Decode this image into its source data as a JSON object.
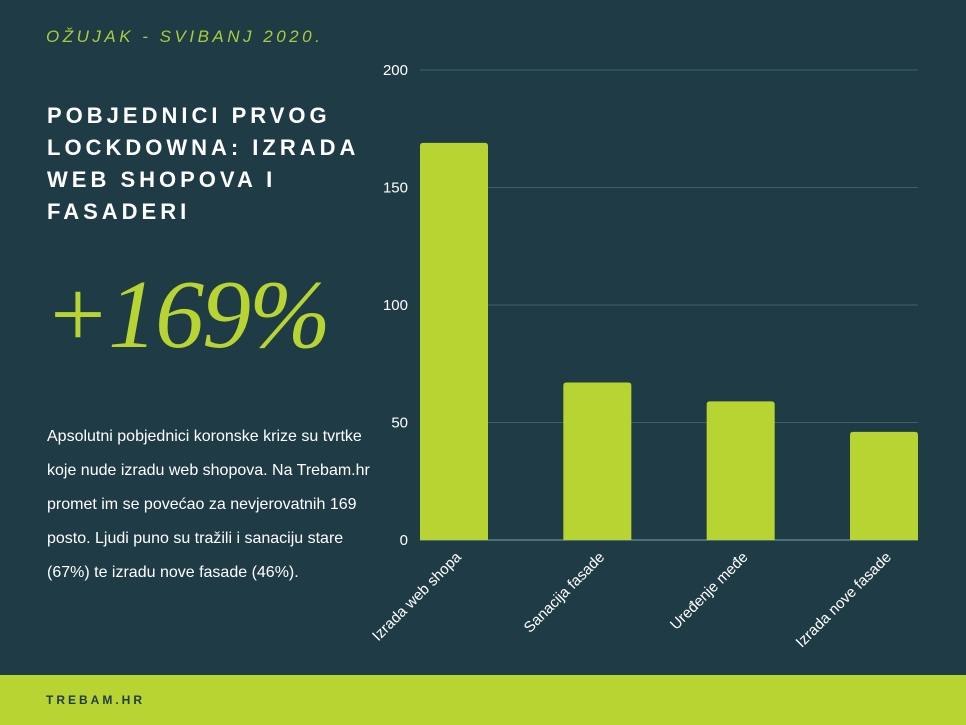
{
  "header": {
    "subtitle": "OŽUJAK - SVIBANJ 2020.",
    "title": "POBJEDNICI PRVOG LOCKDOWNA: IZRADA WEB SHOPOVA I FASADERI",
    "highlight": "+169%"
  },
  "body_text": "Apsolutni pobjednici koronske krize su tvrtke koje nude izradu web shopova. Na Trebam.hr promet im se povećao za nevjerovatnih 169 posto. Ljudi puno su tražili i sanaciju stare (67%) te  izradu nove fasade (46%).",
  "footer": {
    "brand": "TREBAM.HR"
  },
  "colors": {
    "background": "#1f3c46",
    "accent": "#b8d432",
    "gridline": "#3d5f69"
  },
  "chart_data": {
    "type": "bar",
    "categories": [
      "Izrada web shopa",
      "Sanacija fasade",
      "Uređenje međe",
      "Izrada nove fasade"
    ],
    "values": [
      169,
      67,
      59,
      46
    ],
    "yticks": [
      "0",
      "50",
      "100",
      "150",
      "200"
    ],
    "ylim": [
      0,
      200
    ],
    "grid": true,
    "xlabel": "",
    "ylabel": ""
  }
}
